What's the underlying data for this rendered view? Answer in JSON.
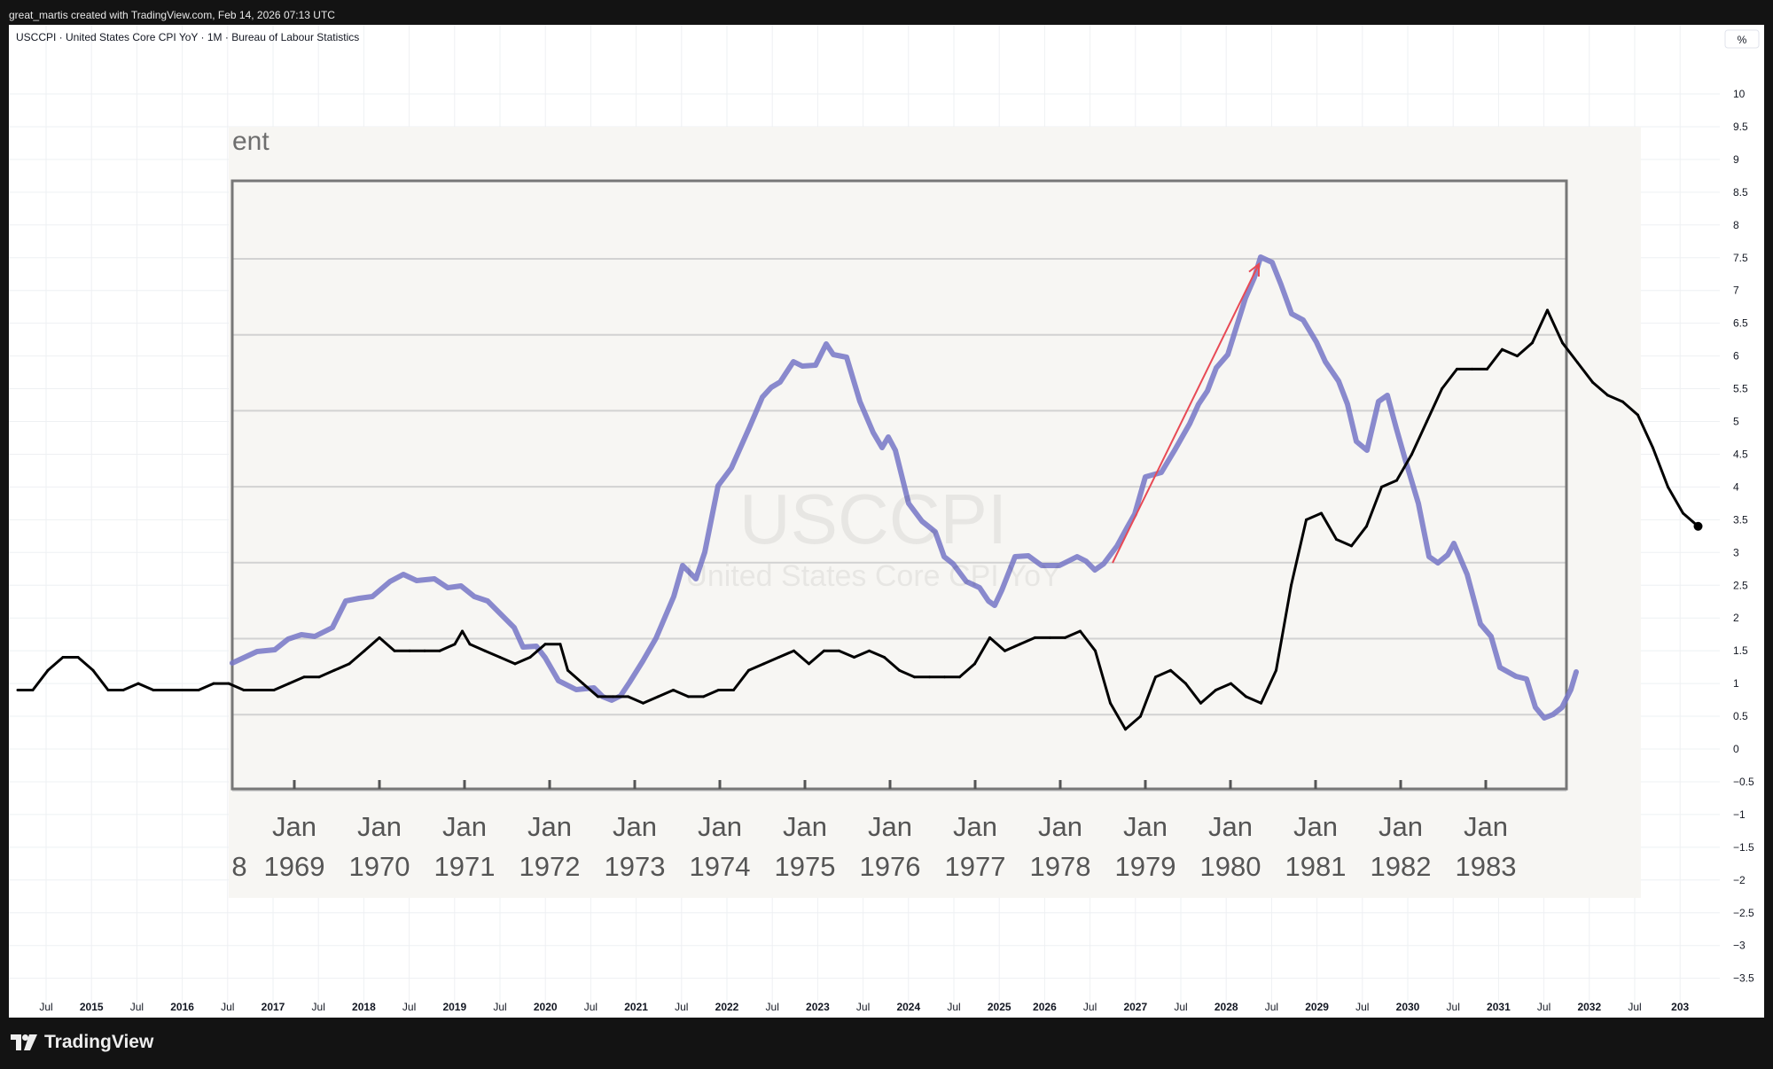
{
  "header": {
    "credit": "great_martis created with TradingView.com, Feb 14, 2026 07:13 UTC"
  },
  "legend": {
    "symbol_title": "USCCPI · United States Core CPI YoY · 1M · Bureau of Labour Statistics"
  },
  "price_scale": {
    "unit_badge": "%",
    "ticks": [
      "10",
      "9.5",
      "9",
      "8.5",
      "8",
      "7.5",
      "7",
      "6.5",
      "6",
      "5.5",
      "5",
      "4.5",
      "4",
      "3.5",
      "3",
      "2.5",
      "2",
      "1.5",
      "1",
      "0.5",
      "0",
      "−0.5",
      "−1",
      "−1.5",
      "−2",
      "−2.5",
      "−3",
      "−3.5"
    ]
  },
  "time_scale": {
    "labels": [
      "Jul",
      "2015",
      "Jul",
      "2016",
      "Jul",
      "2017",
      "Jul",
      "2018",
      "Jul",
      "2019",
      "Jul",
      "2020",
      "Jul",
      "2021",
      "Jul",
      "2022",
      "Jul",
      "2023",
      "Jul",
      "2024",
      "Jul",
      "2025",
      "2026",
      "Jul",
      "2027",
      "Jul",
      "2028",
      "Jul",
      "2029",
      "Jul",
      "2030",
      "Jul",
      "2031",
      "Jul",
      "2032",
      "Jul",
      "203"
    ]
  },
  "watermark": {
    "symbol": "USCCPI",
    "name": "United States Core CPI YoY"
  },
  "overlay_image": {
    "title_fragment": "ent",
    "year_labels": [
      "8",
      "1969",
      "1970",
      "1971",
      "1972",
      "1973",
      "1974",
      "1975",
      "1976",
      "1977",
      "1978",
      "1979",
      "1980",
      "1981",
      "1982",
      "1983"
    ],
    "month_labels": [
      "Jan",
      "Jan",
      "Jan",
      "Jan",
      "Jan",
      "Jan",
      "Jan",
      "Jan",
      "Jan",
      "Jan",
      "Jan",
      "Jan",
      "Jan",
      "Jan",
      "Jan"
    ]
  },
  "colors": {
    "core_cpi_line": "#000000",
    "analog_line": "#7575c6",
    "arrow": "#e84a55",
    "background": "#ffffff",
    "overlay_bg": "#f7f6f3"
  },
  "chart_data": {
    "type": "line",
    "title": "USCCPI · United States Core CPI YoY · 1M · Bureau of Labour Statistics",
    "ylabel": "%",
    "ylim": [
      -3.75,
      10.5
    ],
    "x_range": [
      "2014-03",
      "2032-10"
    ],
    "grid": true,
    "series": [
      {
        "name": "USCCPI",
        "points": [
          [
            "2014-03",
            0.9
          ],
          [
            "2014-05",
            0.9
          ],
          [
            "2014-07",
            1.2
          ],
          [
            "2014-09",
            1.4
          ],
          [
            "2014-11",
            1.4
          ],
          [
            "2015-01",
            1.2
          ],
          [
            "2015-03",
            0.9
          ],
          [
            "2015-05",
            0.9
          ],
          [
            "2015-07",
            1.0
          ],
          [
            "2015-09",
            0.9
          ],
          [
            "2015-11",
            0.9
          ],
          [
            "2016-01",
            0.9
          ],
          [
            "2016-03",
            0.9
          ],
          [
            "2016-05",
            1.0
          ],
          [
            "2016-07",
            1.0
          ],
          [
            "2016-09",
            0.9
          ],
          [
            "2016-11",
            0.9
          ],
          [
            "2017-01",
            0.9
          ],
          [
            "2017-03",
            1.0
          ],
          [
            "2017-05",
            1.1
          ],
          [
            "2017-07",
            1.1
          ],
          [
            "2017-09",
            1.2
          ],
          [
            "2017-11",
            1.3
          ],
          [
            "2018-01",
            1.5
          ],
          [
            "2018-03",
            1.7
          ],
          [
            "2018-05",
            1.5
          ],
          [
            "2018-07",
            1.5
          ],
          [
            "2018-09",
            1.5
          ],
          [
            "2018-11",
            1.5
          ],
          [
            "2019-01",
            1.6
          ],
          [
            "2019-02",
            1.8
          ],
          [
            "2019-03",
            1.6
          ],
          [
            "2019-05",
            1.5
          ],
          [
            "2019-07",
            1.4
          ],
          [
            "2019-09",
            1.3
          ],
          [
            "2019-11",
            1.4
          ],
          [
            "2020-01",
            1.6
          ],
          [
            "2020-03",
            1.6
          ],
          [
            "2020-04",
            1.2
          ],
          [
            "2020-06",
            1.0
          ],
          [
            "2020-08",
            0.8
          ],
          [
            "2020-10",
            0.8
          ],
          [
            "2020-12",
            0.8
          ],
          [
            "2021-02",
            0.7
          ],
          [
            "2021-04",
            0.8
          ],
          [
            "2021-06",
            0.9
          ],
          [
            "2021-08",
            0.8
          ],
          [
            "2021-10",
            0.8
          ],
          [
            "2021-12",
            0.9
          ],
          [
            "2022-02",
            0.9
          ],
          [
            "2022-04",
            1.2
          ],
          [
            "2022-06",
            1.3
          ],
          [
            "2022-08",
            1.4
          ],
          [
            "2022-10",
            1.5
          ],
          [
            "2022-12",
            1.3
          ],
          [
            "2023-02",
            1.5
          ],
          [
            "2023-04",
            1.5
          ],
          [
            "2023-06",
            1.4
          ],
          [
            "2023-08",
            1.5
          ],
          [
            "2023-10",
            1.4
          ],
          [
            "2023-12",
            1.2
          ],
          [
            "2024-02",
            1.1
          ],
          [
            "2024-04",
            1.1
          ],
          [
            "2024-06",
            1.1
          ],
          [
            "2024-08",
            1.1
          ],
          [
            "2024-10",
            1.3
          ],
          [
            "2024-12",
            1.7
          ],
          [
            "2025-02",
            1.5
          ],
          [
            "2025-04",
            1.6
          ],
          [
            "2025-06",
            1.7
          ],
          [
            "2025-08",
            1.7
          ],
          [
            "2025-10",
            1.7
          ],
          [
            "2025-12",
            1.8
          ],
          [
            "2026-02",
            1.5
          ],
          [
            "2026-04",
            0.7
          ],
          [
            "2026-06",
            0.3
          ],
          [
            "2026-08",
            0.5
          ],
          [
            "2026-10",
            1.1
          ],
          [
            "2026-12",
            1.2
          ],
          [
            "2027-02",
            1.0
          ],
          [
            "2027-04",
            0.7
          ],
          [
            "2027-06",
            0.9
          ],
          [
            "2027-08",
            1.0
          ],
          [
            "2027-10",
            0.8
          ],
          [
            "2027-12",
            0.7
          ],
          [
            "2028-02",
            1.2
          ],
          [
            "2028-04",
            2.5
          ],
          [
            "2028-06",
            3.5
          ],
          [
            "2028-08",
            3.6
          ],
          [
            "2028-10",
            3.2
          ],
          [
            "2028-12",
            3.1
          ],
          [
            "2029-02",
            3.4
          ],
          [
            "2029-04",
            4.0
          ],
          [
            "2029-06",
            4.1
          ],
          [
            "2029-08",
            4.5
          ],
          [
            "2029-10",
            5.0
          ],
          [
            "2029-12",
            5.5
          ],
          [
            "2030-02",
            5.8
          ],
          [
            "2030-04",
            5.8
          ],
          [
            "2030-06",
            5.8
          ],
          [
            "2030-08",
            6.1
          ],
          [
            "2030-10",
            6.0
          ],
          [
            "2030-12",
            6.2
          ],
          [
            "2031-02",
            6.7
          ],
          [
            "2031-04",
            6.2
          ],
          [
            "2031-06",
            5.9
          ],
          [
            "2031-08",
            5.6
          ],
          [
            "2031-10",
            5.4
          ],
          [
            "2031-12",
            5.3
          ],
          [
            "2032-02",
            5.1
          ],
          [
            "2032-04",
            4.6
          ],
          [
            "2032-06",
            4.0
          ],
          [
            "2032-08",
            3.6
          ],
          [
            "2032-10",
            3.4
          ]
        ]
      }
    ]
  }
}
